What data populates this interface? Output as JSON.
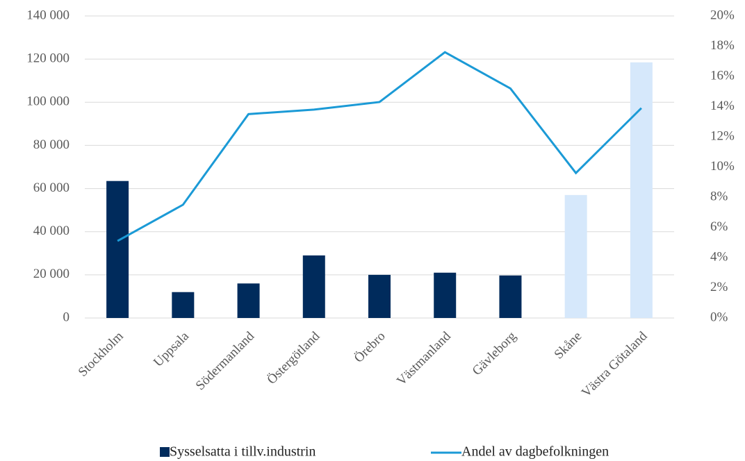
{
  "chart_data": {
    "type": "bar",
    "categories": [
      "Stockholm",
      "Uppsala",
      "Södermanland",
      "Östergötland",
      "Örebro",
      "Västmanland",
      "Gävleborg",
      "Skåne",
      "Västra Götaland"
    ],
    "series": [
      {
        "name": "Sysselsatta i tillv.industrin",
        "type": "bar",
        "color": "#002b5c",
        "colors": [
          "#002b5c",
          "#002b5c",
          "#002b5c",
          "#002b5c",
          "#002b5c",
          "#002b5c",
          "#002b5c",
          "#d6e8fb",
          "#d6e8fb"
        ],
        "values": [
          63500,
          12000,
          16000,
          29000,
          20000,
          21000,
          19700,
          57000,
          118500
        ]
      },
      {
        "name": "Andel av dagbefolkningen",
        "type": "line",
        "axis": "y2",
        "color": "#1b9ad6",
        "values": [
          5.1,
          7.5,
          13.5,
          13.8,
          14.3,
          17.6,
          15.2,
          9.6,
          13.9
        ]
      }
    ],
    "ylim": [
      0,
      140000
    ],
    "yticks": [
      0,
      {
        "value": 20000,
        "label": "20 000"
      },
      {
        "value": 40000,
        "label": "40 000"
      },
      {
        "value": 60000,
        "label": "60 000"
      },
      {
        "value": 80000,
        "label": "80 000"
      },
      {
        "value": 100000,
        "label": "100 000"
      },
      {
        "value": 120000,
        "label": "120 000"
      },
      {
        "value": 140000,
        "label": "140 000"
      }
    ],
    "y2lim": [
      0,
      20
    ],
    "y2ticks": [
      {
        "value": 0,
        "label": "0%"
      },
      {
        "value": 2,
        "label": "2%"
      },
      {
        "value": 4,
        "label": "4%"
      },
      {
        "value": 6,
        "label": "6%"
      },
      {
        "value": 8,
        "label": "8%"
      },
      {
        "value": 10,
        "label": "10%"
      },
      {
        "value": 12,
        "label": "12%"
      },
      {
        "value": 14,
        "label": "14%"
      },
      {
        "value": 16,
        "label": "16%"
      },
      {
        "value": 18,
        "label": "18%"
      },
      {
        "value": 20,
        "label": "20%"
      }
    ],
    "grid": true,
    "legend": "bottom"
  }
}
